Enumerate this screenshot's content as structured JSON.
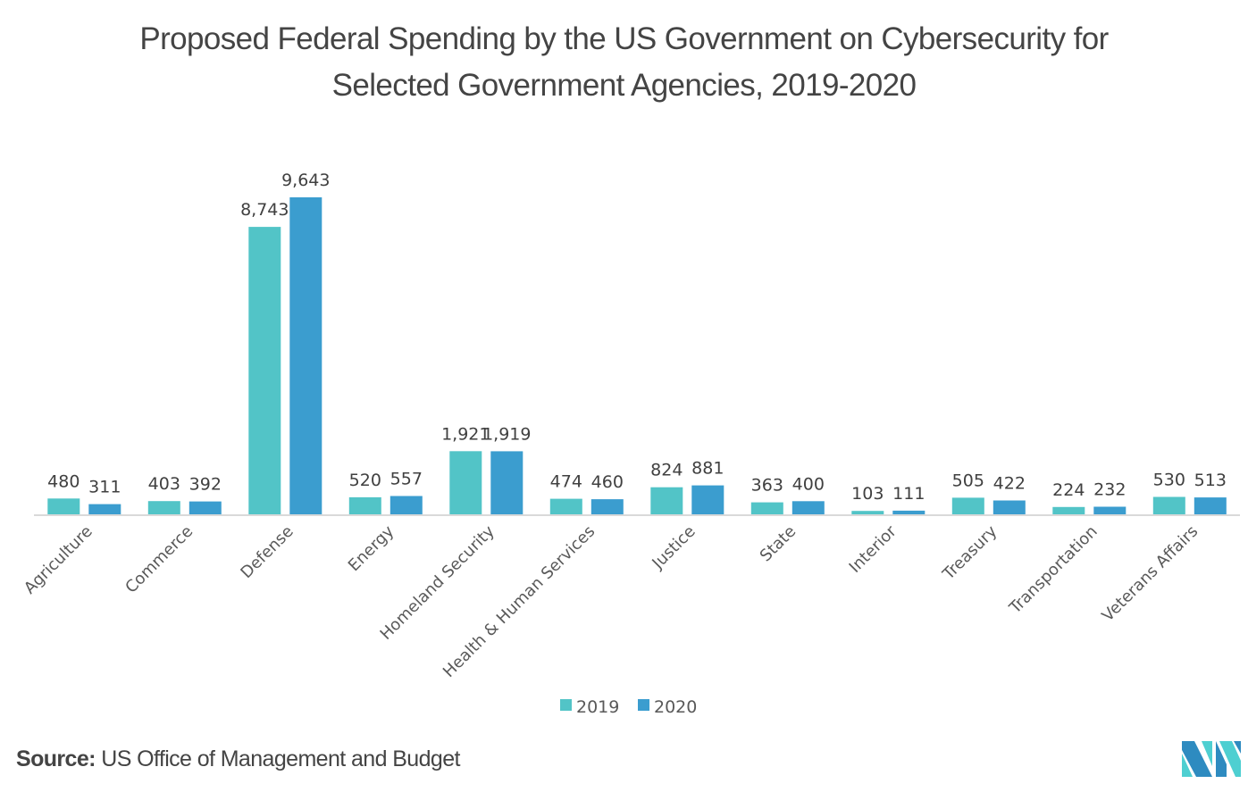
{
  "chart_data": {
    "type": "bar",
    "title": "Proposed Federal Spending by the US Government on Cybersecurity for Selected Government Agencies, 2019-2020",
    "title_lines": [
      "Proposed Federal Spending by the US Government on Cybersecurity for",
      "Selected Government Agencies, 2019-2020"
    ],
    "xlabel": "",
    "ylabel": "",
    "ylim": [
      0,
      10000
    ],
    "grid": false,
    "legend_position": "bottom-center",
    "categories": [
      "Agriculture",
      "Commerce",
      "Defense",
      "Energy",
      "Homeland Security",
      "Health & Human Services",
      "Justice",
      "State",
      "Interior",
      "Treasury",
      "Transportation",
      "Veterans Affairs"
    ],
    "series": [
      {
        "name": "2019",
        "color": "#52C4C7",
        "values": [
          480,
          403,
          8743,
          520,
          1921,
          474,
          824,
          363,
          103,
          505,
          224,
          530
        ],
        "labels": [
          "480",
          "403",
          "8,743",
          "520",
          "1,921",
          "474",
          "824",
          "363",
          "103",
          "505",
          "224",
          "530"
        ]
      },
      {
        "name": "2020",
        "color": "#3B9DCF",
        "values": [
          311,
          392,
          9643,
          557,
          1919,
          460,
          881,
          400,
          111,
          422,
          232,
          513
        ],
        "labels": [
          "311",
          "392",
          "9,643",
          "557",
          "1,919",
          "460",
          "881",
          "400",
          "111",
          "422",
          "232",
          "513"
        ]
      }
    ]
  },
  "footer": {
    "source_label": "Source:",
    "source_text": " US Office of Management and Budget"
  },
  "logo": {
    "icon": "mordor-intelligence-logo-icon",
    "colors": [
      "#2E8BC0",
      "#4ECFD1"
    ]
  },
  "colors": {
    "axis": "#D9D9D9",
    "text": "#444444"
  }
}
